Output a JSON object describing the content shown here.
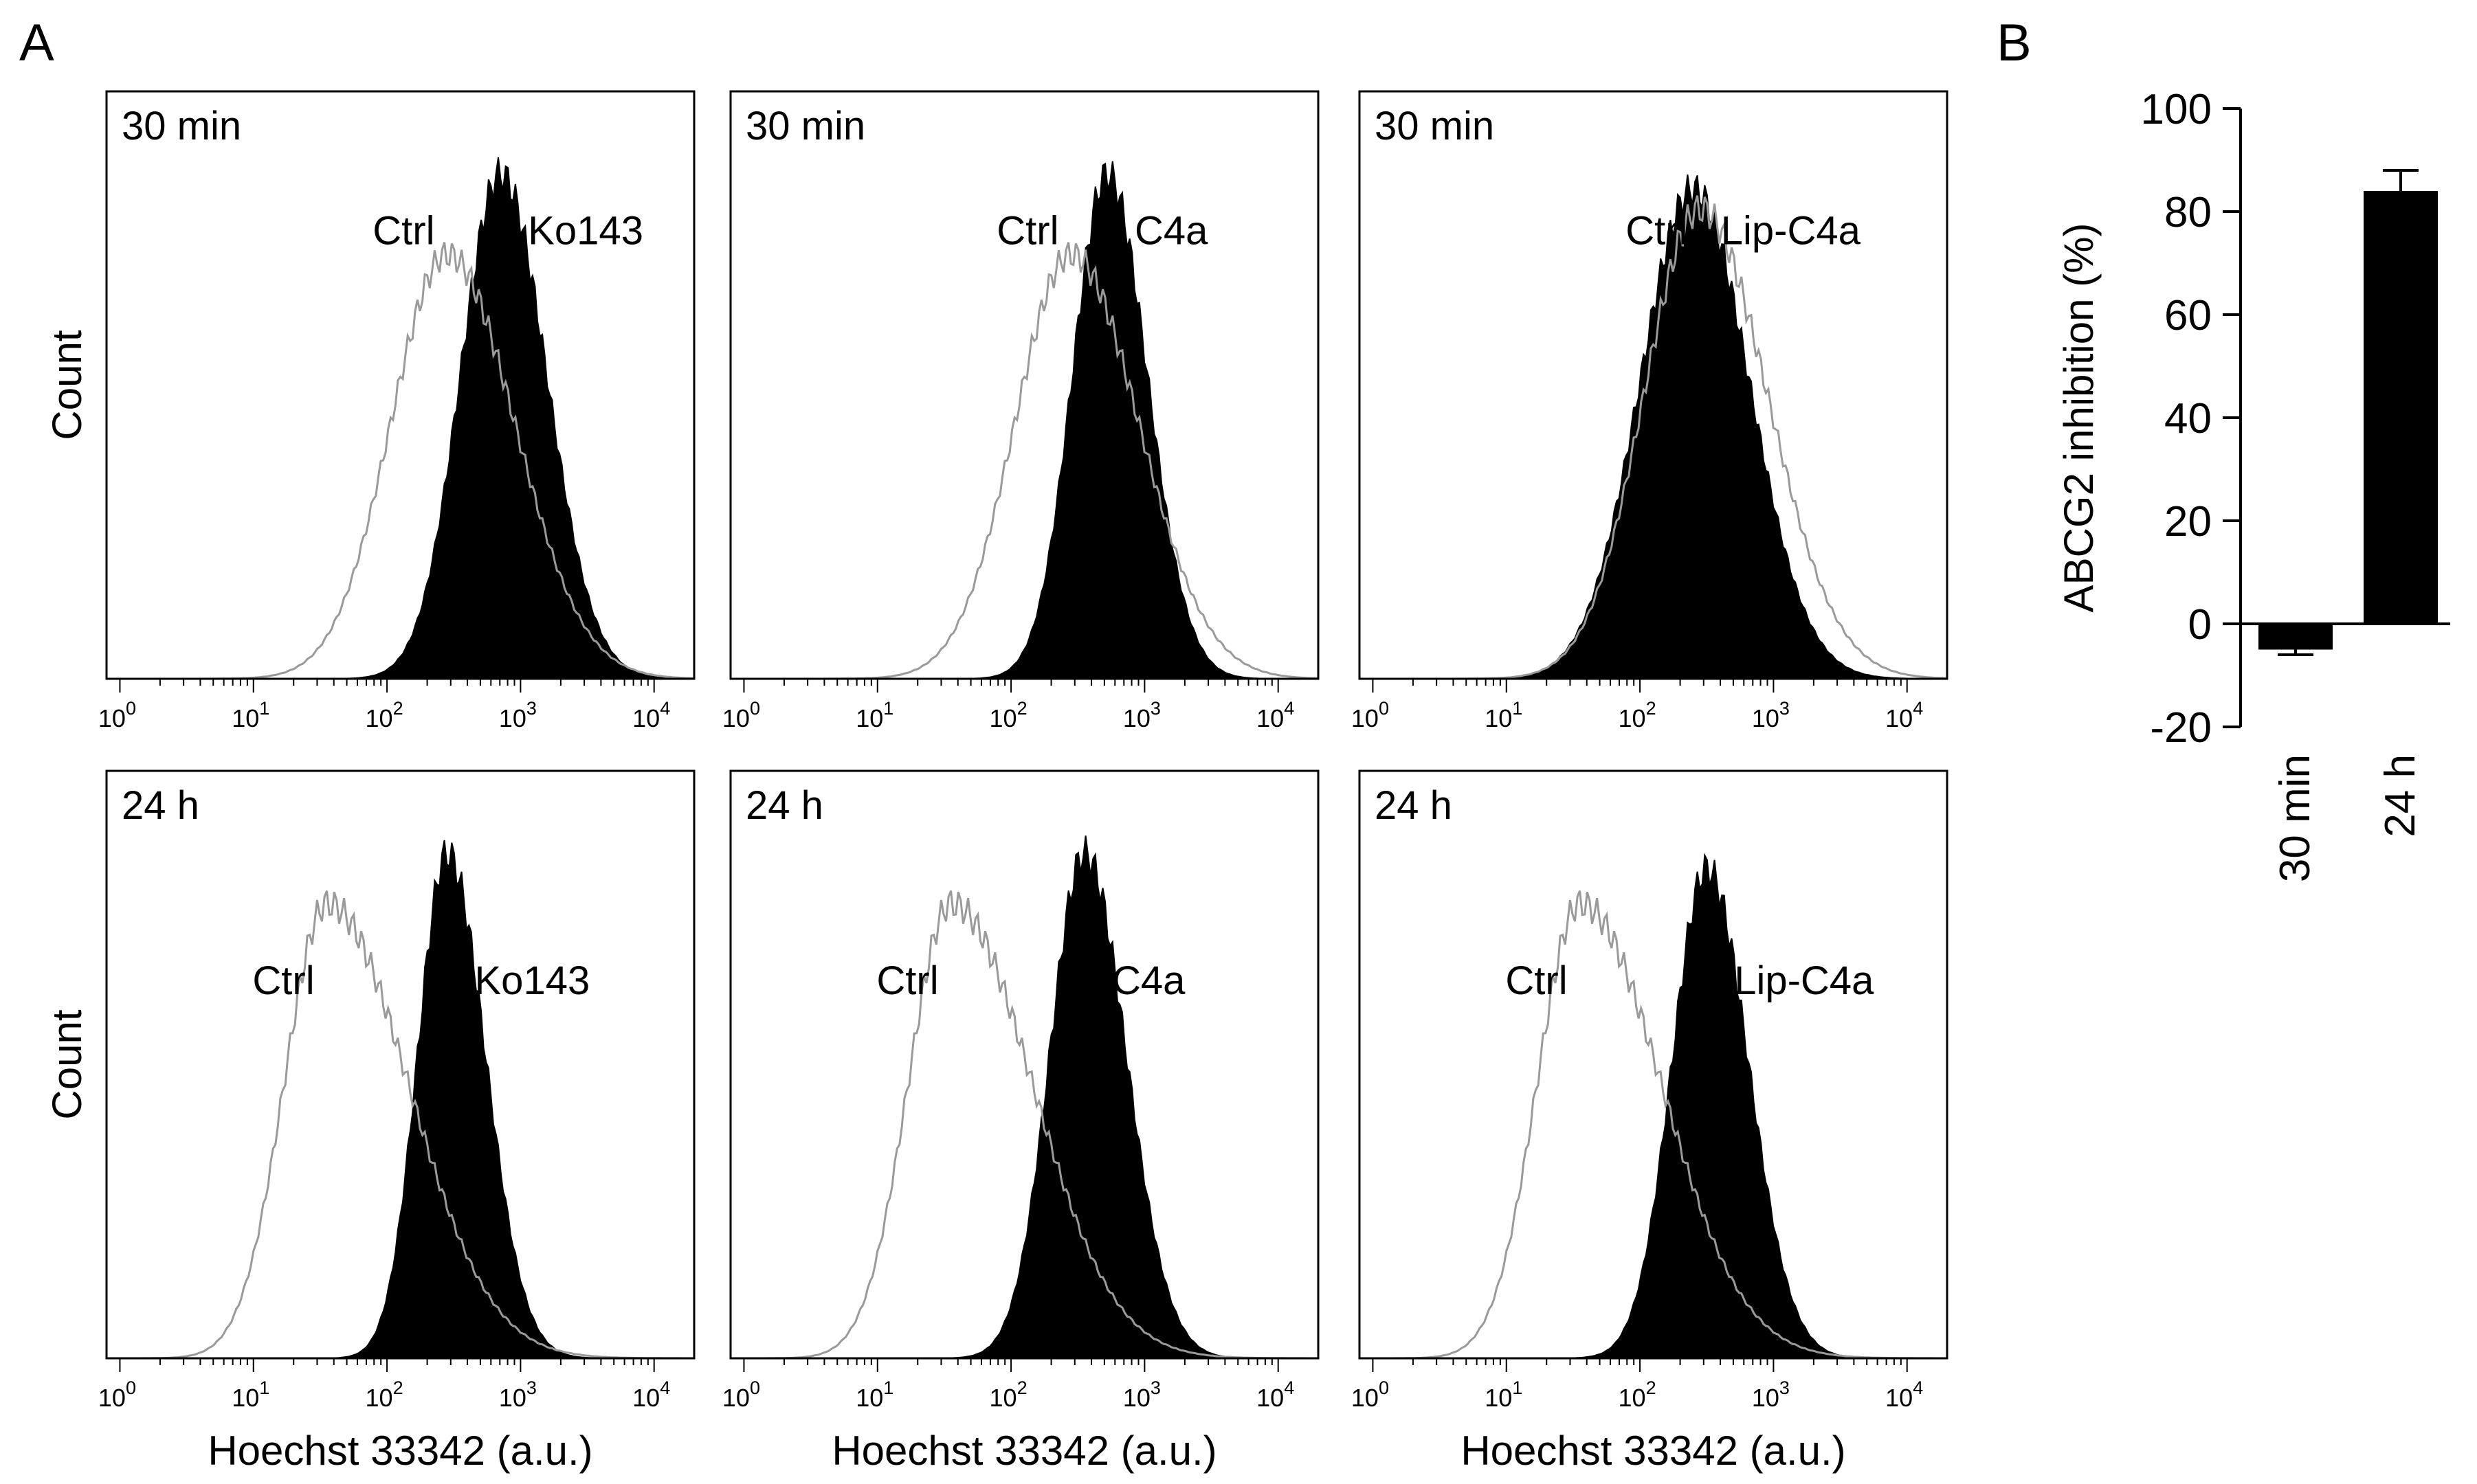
{
  "figure": {
    "panel_a_label": "A",
    "panel_b_label": "B"
  },
  "chart_data": [
    {
      "type": "histogram-overlay",
      "panel": "A",
      "row_titles": [
        "30 min",
        "24 h"
      ],
      "ylabel": "Count",
      "xlabel": "Hoechst 33342 (a.u.)",
      "x_scale": "log",
      "x_range_log10": [
        -0.1,
        4.3
      ],
      "tick_labels": [
        {
          "base": "10",
          "exp": "0"
        },
        {
          "base": "10",
          "exp": "1"
        },
        {
          "base": "10",
          "exp": "2"
        },
        {
          "base": "10",
          "exp": "3"
        },
        {
          "base": "10",
          "exp": "4"
        }
      ],
      "histograms": [
        {
          "row": 0,
          "col": 0,
          "time": "30 min",
          "ctrl_label": "Ctrl",
          "treat_label": "Ko143",
          "ctrl": {
            "peak_log10": 2.45,
            "width": 0.42,
            "height": 0.84,
            "skew": 0.2
          },
          "treat": {
            "peak_log10": 2.85,
            "width": 0.3,
            "height": 1.0,
            "skew": 0.15
          }
        },
        {
          "row": 0,
          "col": 1,
          "time": "30 min",
          "ctrl_label": "Ctrl",
          "treat_label": "C4a",
          "ctrl": {
            "peak_log10": 2.45,
            "width": 0.42,
            "height": 0.84,
            "skew": 0.2
          },
          "treat": {
            "peak_log10": 2.72,
            "width": 0.26,
            "height": 1.0,
            "skew": 0.15
          }
        },
        {
          "row": 0,
          "col": 2,
          "time": "30 min",
          "ctrl_label": "Ctrl",
          "treat_label": "Lip-C4a",
          "ctrl": {
            "peak_log10": 2.45,
            "width": 0.42,
            "height": 0.93,
            "skew": 0.2
          },
          "treat": {
            "peak_log10": 2.4,
            "width": 0.4,
            "height": 0.97,
            "skew": 0.05
          }
        },
        {
          "row": 1,
          "col": 0,
          "time": "24 h",
          "ctrl_label": "Ctrl",
          "treat_label": "Ko143",
          "ctrl": {
            "peak_log10": 1.55,
            "width": 0.32,
            "height": 0.9,
            "skew": 0.9
          },
          "treat": {
            "peak_log10": 2.45,
            "width": 0.22,
            "height": 1.0,
            "skew": 0.3
          }
        },
        {
          "row": 1,
          "col": 1,
          "time": "24 h",
          "ctrl_label": "Ctrl",
          "treat_label": "C4a",
          "ctrl": {
            "peak_log10": 1.55,
            "width": 0.32,
            "height": 0.9,
            "skew": 0.9
          },
          "treat": {
            "peak_log10": 2.55,
            "width": 0.26,
            "height": 1.0,
            "skew": 0.2
          }
        },
        {
          "row": 1,
          "col": 2,
          "time": "24 h",
          "ctrl_label": "Ctrl",
          "treat_label": "Lip-C4a",
          "ctrl": {
            "peak_log10": 1.55,
            "width": 0.32,
            "height": 0.9,
            "skew": 0.9
          },
          "treat": {
            "peak_log10": 2.5,
            "width": 0.26,
            "height": 0.97,
            "skew": 0.2
          }
        }
      ]
    },
    {
      "type": "bar",
      "panel": "B",
      "categories": [
        "30 min",
        "24 h"
      ],
      "values": [
        -5,
        84
      ],
      "errors": [
        1,
        4
      ],
      "ylabel": "ABCG2 inhibition (%)",
      "ylim": [
        -20,
        100
      ],
      "yticks": [
        -20,
        0,
        20,
        40,
        60,
        80,
        100
      ],
      "ytick_labels": [
        "-20",
        "0",
        "20",
        "40",
        "60",
        "80",
        "100"
      ]
    }
  ]
}
